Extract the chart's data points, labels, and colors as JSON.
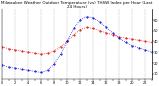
{
  "title": "Milwaukee Weather Outdoor Temperature (vs) THSW Index per Hour (Last 24 Hours)",
  "hours": [
    0,
    1,
    2,
    3,
    4,
    5,
    6,
    7,
    8,
    9,
    10,
    11,
    12,
    13,
    14,
    15,
    16,
    17,
    18,
    19,
    20,
    21,
    22,
    23
  ],
  "temp": [
    35,
    33,
    32,
    31,
    30,
    29,
    28,
    29,
    31,
    35,
    40,
    46,
    51,
    53,
    52,
    50,
    48,
    46,
    44,
    43,
    42,
    41,
    40,
    39
  ],
  "thsw": [
    18,
    16,
    15,
    14,
    13,
    12,
    11,
    13,
    19,
    28,
    40,
    52,
    60,
    63,
    62,
    58,
    53,
    48,
    43,
    39,
    36,
    34,
    32,
    30
  ],
  "temp_color": "#dd0000",
  "thsw_color": "#0000dd",
  "grid_color": "#888888",
  "bg_color": "#ffffff",
  "ylim_min": 5,
  "ylim_max": 70,
  "ytick_values": [
    10,
    20,
    30,
    40,
    50,
    60
  ],
  "ytick_labels": [
    "10",
    "20",
    "30",
    "40",
    "50",
    "60"
  ],
  "title_fontsize": 3.0,
  "tick_fontsize": 2.5,
  "linewidth": 0.55,
  "markersize": 1.0
}
